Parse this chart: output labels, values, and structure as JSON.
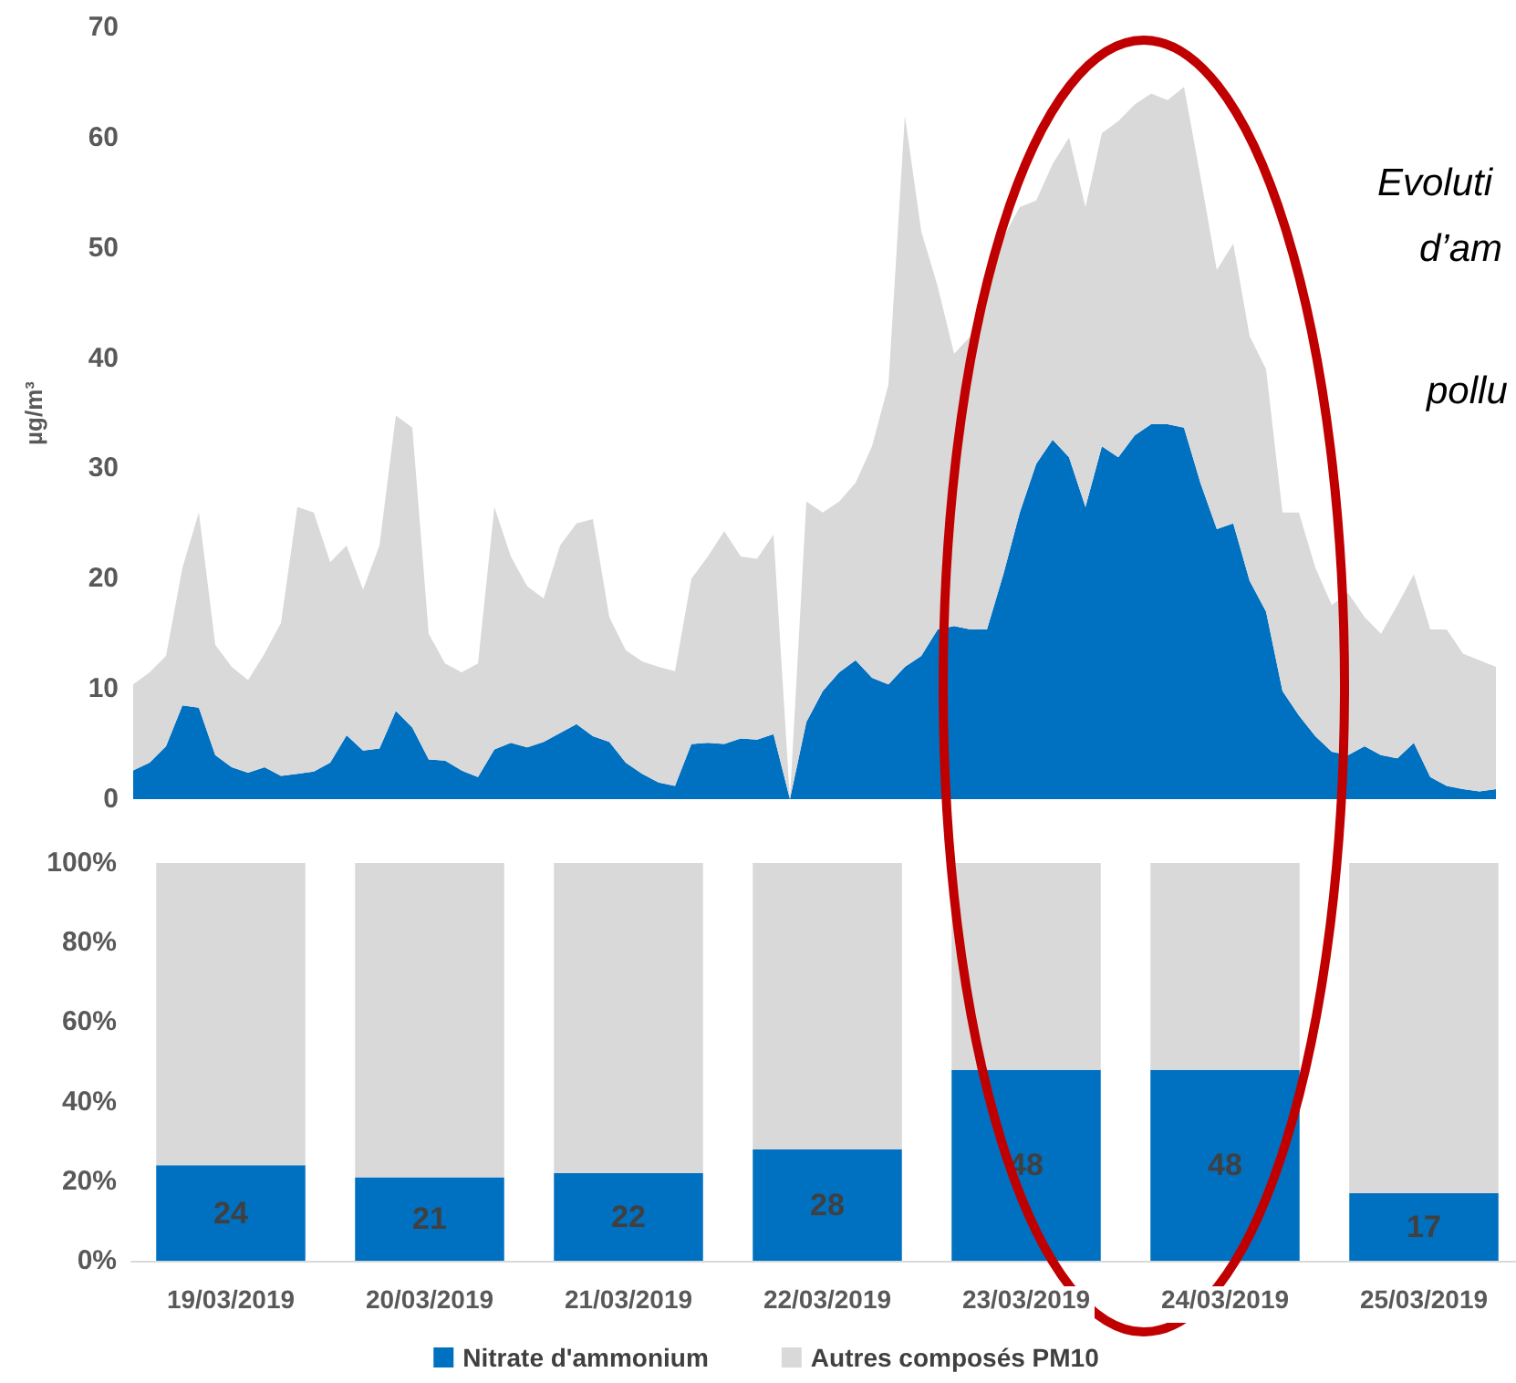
{
  "chart_data": [
    {
      "type": "area",
      "stacked": true,
      "ylabel": "µg/m³",
      "ylim": [
        0,
        70
      ],
      "yticks": [
        0,
        10,
        20,
        30,
        40,
        50,
        60,
        70
      ],
      "tick_labels": "y",
      "annotations": [
        "Evoluti",
        "d’am",
        "pollu"
      ],
      "categories": [
        null,
        null,
        null,
        null,
        null,
        null,
        null,
        null,
        null,
        null,
        null,
        null,
        null,
        null,
        null,
        null,
        null,
        null,
        null,
        null,
        null,
        null,
        null,
        null,
        null,
        null,
        null,
        null,
        null,
        null,
        null,
        null,
        null,
        null,
        null,
        null,
        null,
        null,
        null,
        null,
        null,
        null,
        null,
        null,
        null,
        null,
        null,
        null,
        null,
        null,
        null,
        null,
        null,
        null,
        null,
        null,
        null,
        null,
        null,
        null,
        null,
        null,
        null,
        null,
        null,
        null,
        null,
        null,
        null,
        null,
        null,
        null,
        null,
        null,
        null,
        null,
        null,
        null,
        null,
        null,
        null,
        null,
        null,
        null
      ],
      "series": [
        {
          "color": "#0070c0",
          "values": [
            2.6,
            3.3,
            4.8,
            8.5,
            8.3,
            4,
            2.9,
            2.4,
            2.9,
            2.1,
            2.3,
            2.5,
            3.3,
            5.8,
            4.4,
            4.6,
            8,
            6.5,
            3.6,
            3.5,
            2.6,
            2,
            4.5,
            5.1,
            4.7,
            5.2,
            6,
            6.8,
            5.7,
            5.2,
            3.3,
            2.3,
            1.5,
            1.2,
            5,
            5.1,
            5,
            5.5,
            5.4,
            5.9,
            0,
            7,
            9.8,
            11.5,
            12.6,
            11,
            10.4,
            12,
            13,
            15.4,
            15.7,
            15.4,
            15.4,
            20.4,
            26,
            30.4,
            32.6,
            31,
            26.5,
            32,
            31,
            33,
            34,
            34,
            33.7,
            28.7,
            24.5,
            25,
            19.8,
            17,
            9.8,
            7.6,
            5.7,
            4.3,
            4,
            4.8,
            4,
            3.7,
            5.1,
            2,
            1.2,
            0.9,
            0.7,
            0.9
          ]
        },
        {
          "color": "#d9d9d9",
          "values": [
            7.8,
            8.2,
            8.2,
            12.5,
            17.7,
            10,
            9.1,
            8.4,
            10.3,
            13.9,
            24.2,
            23.5,
            18.2,
            17.2,
            14.6,
            18.4,
            26.8,
            27.2,
            11.4,
            8.8,
            8.9,
            10.3,
            22,
            16.9,
            14.6,
            13,
            17,
            18.2,
            19.7,
            11.3,
            10.2,
            10.2,
            10.5,
            10.4,
            15,
            16.9,
            19.3,
            16.5,
            16.4,
            18.1,
            0,
            20,
            16.2,
            15.5,
            16.1,
            21,
            27.2,
            50,
            38.5,
            31.1,
            24.7,
            26.6,
            31.1,
            30.6,
            27.7,
            23.9,
            25,
            29,
            27.2,
            28.4,
            30.5,
            30,
            30,
            29.4,
            30.9,
            27.8,
            23.5,
            25.4,
            22.2,
            22,
            16.2,
            18.4,
            15.3,
            13.3,
            14.7,
            11.7,
            11,
            13.9,
            15.3,
            13.4,
            14.2,
            12.3,
            11.9,
            11.1
          ]
        }
      ]
    },
    {
      "type": "bar",
      "stacked": true,
      "legend": "bottom",
      "ylim": [
        0,
        100
      ],
      "yticks": [
        {
          "value": 0,
          "label": "0%"
        },
        {
          "value": 20,
          "label": "20%"
        },
        {
          "value": 40,
          "label": "40%"
        },
        {
          "value": 60,
          "label": "60%"
        },
        {
          "value": 80,
          "label": "80%"
        },
        {
          "value": 100,
          "label": "100%"
        }
      ],
      "categories": [
        "19/03/2019",
        "20/03/2019",
        "21/03/2019",
        "22/03/2019",
        "23/03/2019",
        "24/03/2019",
        "25/03/2019"
      ],
      "series": [
        {
          "name": "Nitrate d'ammonium",
          "color": "#0070c0",
          "values": [
            24,
            21,
            22,
            28,
            48,
            48,
            17
          ],
          "value_labels": [
            "24",
            "21",
            "22",
            "28",
            "48",
            "48",
            "17"
          ]
        },
        {
          "name": "Autres composés PM10",
          "color": "#d9d9d9",
          "values": [
            76,
            79,
            78,
            72,
            52,
            52,
            83
          ]
        }
      ]
    }
  ]
}
